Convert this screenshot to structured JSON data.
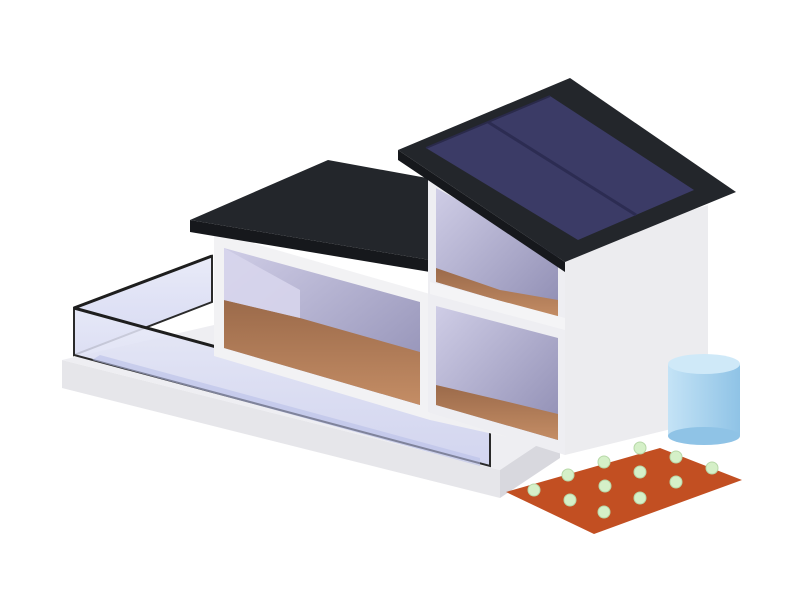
{
  "scene": {
    "subject": "house-cross-section-illustration",
    "elements": [
      "solar-panel-roof",
      "flat-roof",
      "glass-balcony-railing",
      "rooms-with-wooden-floors",
      "water-tank",
      "garden-bed-with-plants"
    ]
  },
  "colors": {
    "background": "#ffffff",
    "wall": "#f2f2f4",
    "wall_shade": "#dedee4",
    "roof": "#23262b",
    "solar_panel": "#3b3b66",
    "solar_panel_dark": "#2c2c52",
    "interior_wall": "#b9b6d6",
    "floor_wood": "#b07a55",
    "glass": "#d9dcf2",
    "water_tank": "#a9d3ee",
    "soil": "#c24f22",
    "plant": "#d5f0c8"
  }
}
